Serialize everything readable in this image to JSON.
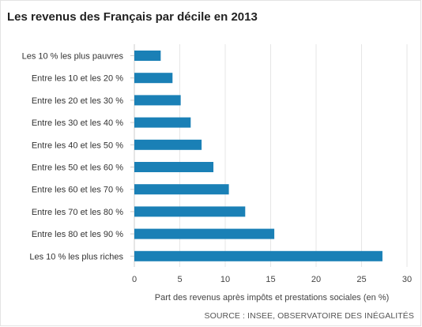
{
  "chart_data": {
    "type": "bar",
    "orientation": "horizontal",
    "title": "Les revenus des Français par décile en 2013",
    "categories": [
      "Les 10 % les plus pauvres",
      "Entre les 10 et les 20 %",
      "Entre les 20 et les 30 %",
      "Entre les 30 et les 40 %",
      "Entre les 40 et les 50 %",
      "Entre les 50 et les 60 %",
      "Entre les 60 et les 70 %",
      "Entre les 70 et les 80 %",
      "Entre les 80 et les 90 %",
      "Les 10 % les plus riches"
    ],
    "values": [
      2.9,
      4.2,
      5.1,
      6.2,
      7.4,
      8.7,
      10.4,
      12.2,
      15.4,
      27.3
    ],
    "xlabel": "Part des revenus après impôts et prestations sociales (en %)",
    "ylabel": "",
    "xlim": [
      0,
      30
    ],
    "ticks": [
      "0",
      "5",
      "10",
      "15",
      "20",
      "25",
      "30"
    ],
    "grid": true,
    "bar_color": "#1a80b6",
    "grid_color": "#e6e6e6",
    "source": "SOURCE : INSEE, OBSERVATOIRE DES INÉGALITÉS"
  }
}
